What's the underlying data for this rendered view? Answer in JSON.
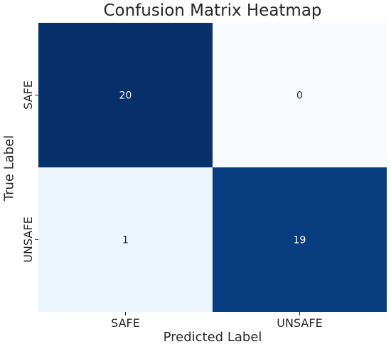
{
  "chart_data": {
    "type": "heatmap",
    "title": "Confusion Matrix Heatmap",
    "xlabel": "Predicted Label",
    "ylabel": "True Label",
    "x_categories": [
      "SAFE",
      "UNSAFE"
    ],
    "y_categories": [
      "SAFE",
      "UNSAFE"
    ],
    "matrix": [
      [
        20,
        0
      ],
      [
        1,
        19
      ]
    ],
    "colormap": "Blues",
    "vmin": 0,
    "vmax": 20,
    "colorbar": false,
    "annotations": true,
    "colors": {
      "low": "#f7fbff",
      "high": "#08306b",
      "text_light": "#ffffff",
      "text_dark": "#262626"
    }
  }
}
